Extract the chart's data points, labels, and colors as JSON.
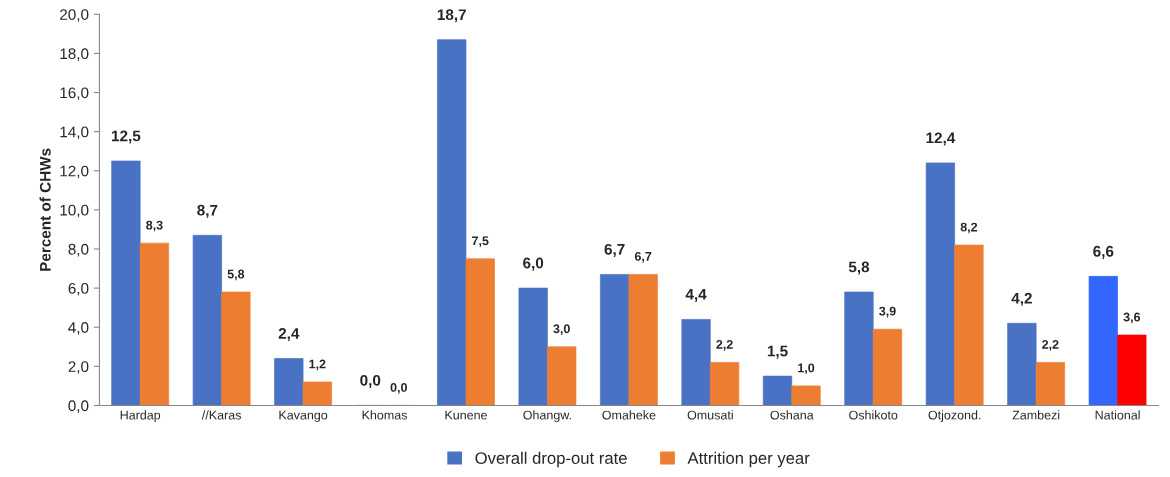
{
  "chart_data": {
    "type": "bar",
    "ylabel": "Percent of CHWs",
    "categories": [
      "Hardap",
      "//Karas",
      "Kavango",
      "Khomas",
      "Kunene",
      "Ohangw.",
      "Omaheke",
      "Omusati",
      "Oshana",
      "Oshikoto",
      "Otjozond.",
      "Zambezi",
      "National"
    ],
    "series": [
      {
        "name": "Overall drop-out rate",
        "color": "#4a72c4",
        "colors": [
          "#4a72c4",
          "#4a72c4",
          "#4a72c4",
          "#4a72c4",
          "#4a72c4",
          "#4a72c4",
          "#4a72c4",
          "#4a72c4",
          "#4a72c4",
          "#4a72c4",
          "#4a72c4",
          "#4a72c4",
          "#3366ff"
        ],
        "values": [
          12.5,
          8.7,
          2.4,
          0.0,
          18.7,
          6.0,
          6.7,
          4.4,
          1.5,
          5.8,
          12.4,
          4.2,
          6.6
        ],
        "value_labels": [
          "12,5",
          "8,7",
          "2,4",
          "0,0",
          "18,7",
          "6,0",
          "6,7",
          "4,4",
          "1,5",
          "5,8",
          "12,4",
          "4,2",
          "6,6"
        ]
      },
      {
        "name": "Attrition per year",
        "color": "#ed7d31",
        "colors": [
          "#ed7d31",
          "#ed7d31",
          "#ed7d31",
          "#ed7d31",
          "#ed7d31",
          "#ed7d31",
          "#ed7d31",
          "#ed7d31",
          "#ed7d31",
          "#ed7d31",
          "#ed7d31",
          "#ed7d31",
          "#ff0000"
        ],
        "values": [
          8.3,
          5.8,
          1.2,
          0.0,
          7.5,
          3.0,
          6.7,
          2.2,
          1.0,
          3.9,
          8.2,
          2.2,
          3.6
        ],
        "value_labels": [
          "8,3",
          "5,8",
          "1,2",
          "0,0",
          "7,5",
          "3,0",
          "6,7",
          "2,2",
          "1,0",
          "3,9",
          "8,2",
          "2,2",
          "3,6"
        ]
      }
    ],
    "ylim": [
      0,
      20
    ],
    "yticks": [
      {
        "value": 0,
        "label": "0,0"
      },
      {
        "value": 2,
        "label": "2,0"
      },
      {
        "value": 4,
        "label": "4,0"
      },
      {
        "value": 6,
        "label": "6,0"
      },
      {
        "value": 8,
        "label": "8,0"
      },
      {
        "value": 10,
        "label": "10,0"
      },
      {
        "value": 12,
        "label": "12,0"
      },
      {
        "value": 14,
        "label": "14,0"
      },
      {
        "value": 16,
        "label": "16,0"
      },
      {
        "value": 18,
        "label": "18,0"
      },
      {
        "value": 20,
        "label": "20,0"
      }
    ],
    "grid": false,
    "legend": "bottom"
  }
}
